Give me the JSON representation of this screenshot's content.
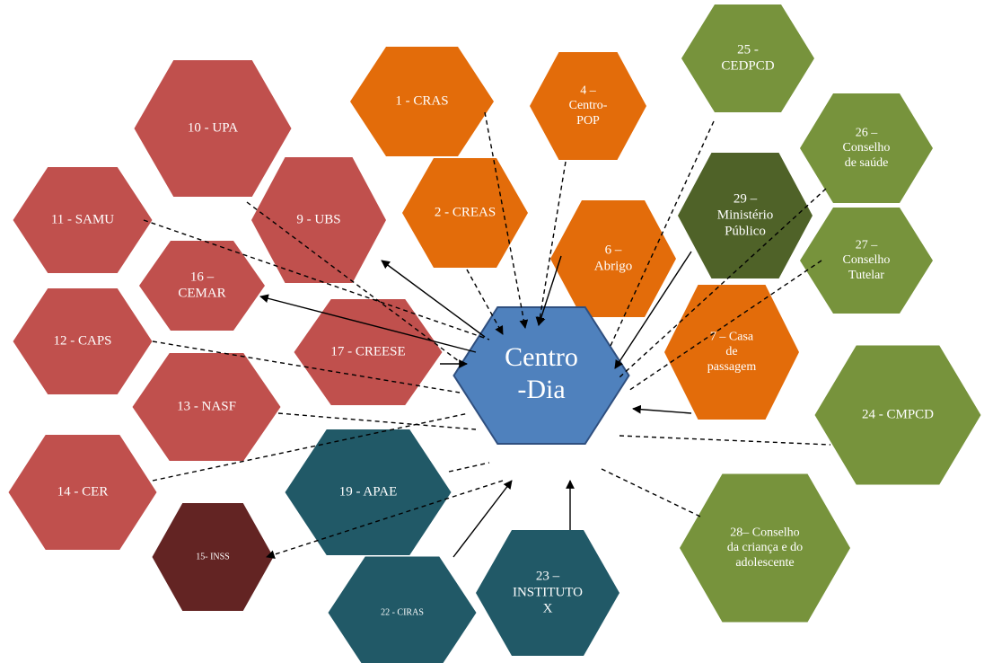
{
  "nodes": [
    {
      "lines": [
        "10 - UPA"
      ]
    },
    {
      "lines": [
        "1 - CRAS"
      ]
    },
    {
      "lines": [
        "4 –",
        "Centro-",
        "POP"
      ]
    },
    {
      "lines": [
        "25 -",
        "CEDPCD"
      ]
    },
    {
      "lines": [
        "26 –",
        "Conselho",
        "de saúde"
      ]
    },
    {
      "lines": [
        "11 - SAMU"
      ]
    },
    {
      "lines": [
        "9 - UBS"
      ]
    },
    {
      "lines": [
        "2 - CREAS"
      ]
    },
    {
      "lines": [
        "6 –",
        "Abrigo"
      ]
    },
    {
      "lines": [
        "29 –",
        "Ministério",
        "Público"
      ]
    },
    {
      "lines": [
        "27 –",
        "Conselho",
        "Tutelar"
      ]
    },
    {
      "lines": [
        "16 –",
        "CEMAR"
      ]
    },
    {
      "lines": [
        "12 - CAPS"
      ]
    },
    {
      "lines": [
        "17 - CREESE"
      ]
    },
    {
      "lines": [
        "7 – Casa",
        "de",
        "passagem"
      ]
    },
    {
      "lines": [
        "Centro",
        "-Dia"
      ]
    },
    {
      "lines": [
        "13 - NASF"
      ]
    },
    {
      "lines": [
        "24 - CMPCD"
      ]
    },
    {
      "lines": [
        "14 - CER"
      ]
    },
    {
      "lines": [
        "19 - APAE"
      ]
    },
    {
      "lines": [
        "28– Conselho",
        "da criança e do",
        "adolescente"
      ]
    },
    {
      "lines": [
        "15- INSS"
      ]
    },
    {
      "lines": [
        "23 –",
        "INSTITUTO",
        "X"
      ]
    },
    {
      "lines": [
        "22 - CIRAS"
      ]
    }
  ]
}
